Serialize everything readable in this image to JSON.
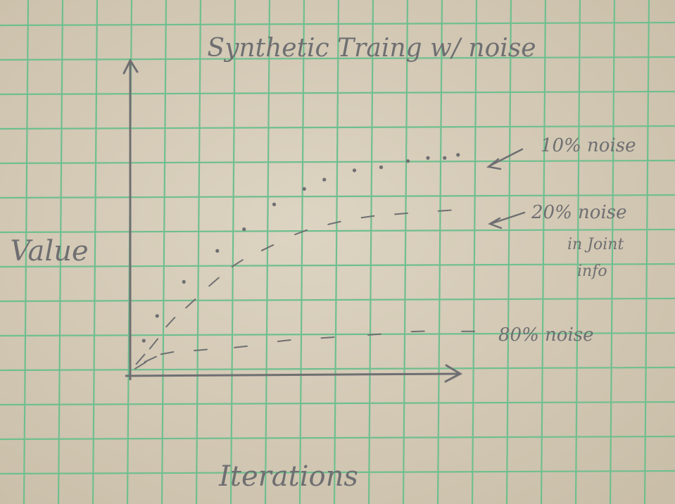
{
  "chart_data": {
    "type": "line",
    "title": "Synthetic Traing w/ noise",
    "xlabel": "Iterations",
    "ylabel": "Value",
    "xlim": [
      0,
      1
    ],
    "ylim": [
      0,
      1
    ],
    "grid": true,
    "series": [
      {
        "name": "10% noise",
        "style": "dotted",
        "x": [
          0.03,
          0.07,
          0.15,
          0.25,
          0.33,
          0.42,
          0.51,
          0.57,
          0.66,
          0.74,
          0.82,
          0.88,
          0.93,
          0.97
        ],
        "y": [
          0.1,
          0.18,
          0.29,
          0.39,
          0.46,
          0.54,
          0.59,
          0.62,
          0.65,
          0.66,
          0.68,
          0.69,
          0.69,
          0.7
        ]
      },
      {
        "name": "20% noise in Joint info",
        "style": "dashed",
        "x": [
          0.02,
          0.06,
          0.11,
          0.17,
          0.24,
          0.31,
          0.4,
          0.5,
          0.6,
          0.7,
          0.8,
          0.93
        ],
        "y": [
          0.04,
          0.09,
          0.16,
          0.22,
          0.29,
          0.35,
          0.4,
          0.45,
          0.48,
          0.5,
          0.51,
          0.52
        ]
      },
      {
        "name": "80% noise",
        "style": "dashed",
        "x": [
          0.02,
          0.05,
          0.1,
          0.2,
          0.32,
          0.45,
          0.58,
          0.72,
          0.85,
          1.0
        ],
        "y": [
          0.02,
          0.04,
          0.06,
          0.07,
          0.08,
          0.1,
          0.11,
          0.12,
          0.13,
          0.13
        ]
      }
    ]
  },
  "annotations": {
    "noise10": "10% noise",
    "noise20": "20% noise",
    "noise20_line2": "in Joint",
    "noise20_line3": "info",
    "noise80": "80% noise"
  },
  "colors": {
    "paper": "#d7cdb9",
    "grid": "#6fbf8f",
    "pencil": "#6f6f72"
  }
}
